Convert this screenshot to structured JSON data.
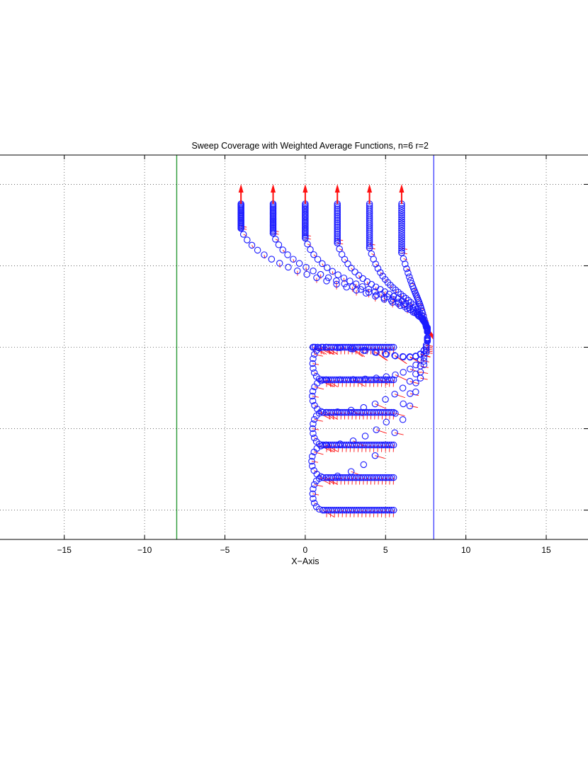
{
  "chart_data": {
    "type": "line",
    "title": "Sweep Coverage with Weighted Average Functions, n=6 r=2",
    "xlabel": "X−Axis",
    "ylabel": "",
    "xlim": [
      -19,
      17.6
    ],
    "ylim": [
      -0.8,
      22.8
    ],
    "x_ticks": [
      -15,
      -10,
      -5,
      0,
      5,
      10,
      15
    ],
    "x_tick_labels": [
      "−15",
      "−10",
      "−5",
      "0",
      "5",
      "10",
      "15"
    ],
    "y_gridlines": [
      1,
      6,
      11,
      16,
      21
    ],
    "grid": true,
    "boundaries": [
      {
        "x": -8,
        "color": "#2e9a3a"
      },
      {
        "x": 8,
        "color": "#4a4aff"
      }
    ],
    "trajectory_marker_color": "#1a1aff",
    "heading_arrow_color": "#ff1010",
    "final_positions": [
      {
        "x": -4,
        "y": 19.8
      },
      {
        "x": -2,
        "y": 19.8
      },
      {
        "x": 0,
        "y": 19.8
      },
      {
        "x": 2,
        "y": 19.8
      },
      {
        "x": 4,
        "y": 19.8
      },
      {
        "x": 6,
        "y": 19.8
      }
    ],
    "start_positions": [
      {
        "x": 5.5,
        "y": 11.0
      },
      {
        "x": 5.5,
        "y": 9.0
      },
      {
        "x": 5.5,
        "y": 7.0
      },
      {
        "x": 5.5,
        "y": 5.0
      },
      {
        "x": 5.5,
        "y": 3.0
      },
      {
        "x": 5.5,
        "y": 1.0
      }
    ],
    "agent_count": 6,
    "sensing_radius": 2
  }
}
